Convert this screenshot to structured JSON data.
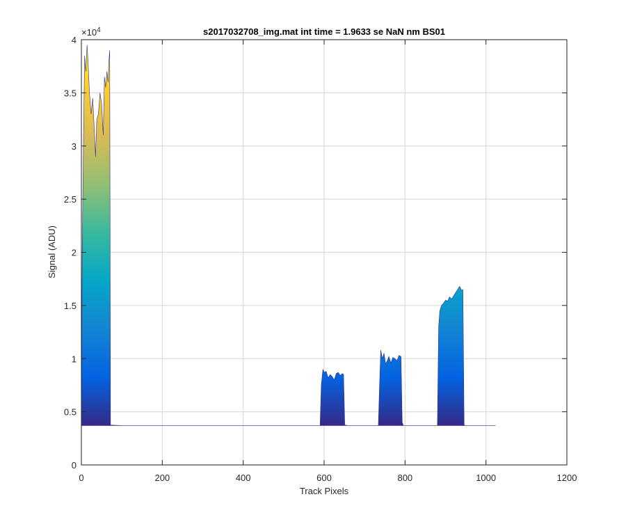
{
  "chart_data": {
    "type": "area",
    "title": "s2017032708_img.mat int time = 1.9633 se  NaN nm BS01",
    "xlabel": "Track Pixels",
    "ylabel": "Signal (ADU)",
    "xlim": [
      0,
      1200
    ],
    "ylim": [
      0,
      40000
    ],
    "xticks": [
      "0",
      "200",
      "400",
      "600",
      "800",
      "1000",
      "1200"
    ],
    "yticks": [
      "0",
      "0.5",
      "1",
      "1.5",
      "2",
      "2.5",
      "3",
      "3.5",
      "4"
    ],
    "y_exponent_label": "×10",
    "y_exponent_power": "4",
    "grid": true,
    "baseline": 3700,
    "colormap": [
      "#352a87",
      "#0363e1",
      "#1485d4",
      "#06a7c6",
      "#38b99e",
      "#92bf73",
      "#d9ba56",
      "#fcce2e",
      "#f9fb0e"
    ],
    "series": [
      {
        "x": [
          0,
          2,
          5,
          8,
          11,
          14,
          17,
          20,
          24,
          28,
          32,
          35,
          38,
          42,
          46,
          50,
          54,
          57,
          60,
          63,
          66,
          68,
          70,
          72,
          100,
          200,
          300,
          400,
          500,
          590,
          593,
          597,
          600,
          605,
          610,
          615,
          620,
          625,
          630,
          635,
          640,
          645,
          648,
          651,
          660,
          700,
          734,
          737,
          740,
          744,
          748,
          752,
          756,
          760,
          765,
          770,
          775,
          780,
          785,
          790,
          793,
          796,
          800,
          850,
          880,
          883,
          886,
          890,
          895,
          900,
          905,
          910,
          915,
          920,
          925,
          930,
          935,
          940,
          943,
          946,
          950,
          1000,
          1024
        ],
        "y": [
          3700,
          20000,
          30000,
          38500,
          37000,
          39500,
          37500,
          35000,
          33000,
          34500,
          31500,
          29000,
          32500,
          33000,
          35000,
          34000,
          31000,
          36500,
          35500,
          37000,
          36000,
          38000,
          39000,
          3750,
          3700,
          3700,
          3700,
          3700,
          3700,
          3700,
          7500,
          9000,
          8700,
          8800,
          8200,
          8500,
          8300,
          8000,
          8600,
          8700,
          8400,
          8600,
          8500,
          3750,
          3700,
          3700,
          3700,
          7500,
          10800,
          10000,
          10500,
          9500,
          9800,
          10200,
          9600,
          10100,
          10000,
          9800,
          10300,
          10200,
          4000,
          3700,
          3700,
          3700,
          3700,
          13000,
          14500,
          15000,
          15200,
          15500,
          15400,
          15800,
          15600,
          15900,
          16200,
          16500,
          16800,
          16400,
          16500,
          3750,
          3700,
          3700,
          3700
        ]
      }
    ]
  }
}
